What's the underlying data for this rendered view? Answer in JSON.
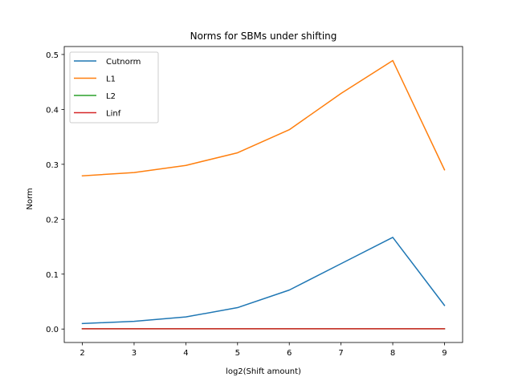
{
  "chart_data": {
    "type": "line",
    "title": "Norms for SBMs under shifting",
    "xlabel": "log2(Shift amount)",
    "ylabel": "Norm",
    "x": [
      2,
      3,
      4,
      5,
      6,
      7,
      8,
      9
    ],
    "xlim": [
      1.65,
      9.35
    ],
    "ylim": [
      -0.0245,
      0.5145
    ],
    "xticks": [
      2,
      3,
      4,
      5,
      6,
      7,
      8,
      9
    ],
    "yticks": [
      0.0,
      0.1,
      0.2,
      0.3,
      0.4,
      0.5
    ],
    "ytick_labels": [
      "0.0",
      "0.1",
      "0.2",
      "0.3",
      "0.4",
      "0.5"
    ],
    "grid": false,
    "legend_position": "top-left",
    "series": [
      {
        "name": "Cutnorm",
        "color": "#1f77b4",
        "values": [
          0.01,
          0.014,
          0.022,
          0.039,
          0.071,
          0.119,
          0.167,
          0.043
        ]
      },
      {
        "name": "L1",
        "color": "#ff7f0e",
        "values": [
          0.279,
          0.285,
          0.298,
          0.321,
          0.363,
          0.429,
          0.489,
          0.29
        ]
      },
      {
        "name": "L2",
        "color": "#2ca02c",
        "values": [
          0.0005,
          0.0005,
          0.0005,
          0.0005,
          0.0005,
          0.0005,
          0.0005,
          0.0005
        ]
      },
      {
        "name": "Linf",
        "color": "#d62728",
        "values": [
          0.0005,
          0.0005,
          0.0005,
          0.0005,
          0.0005,
          0.0005,
          0.0005,
          0.0005
        ]
      }
    ]
  }
}
